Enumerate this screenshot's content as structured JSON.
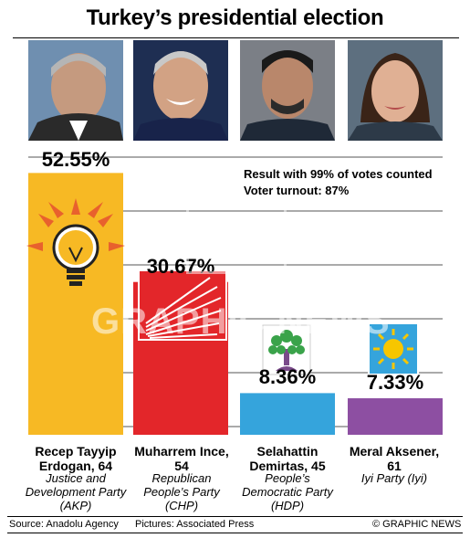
{
  "title": "Turkey’s presidential election",
  "notes": {
    "line1": "Result with 99% of votes counted",
    "line2": "Voter turnout: 87%"
  },
  "chart_data": {
    "type": "bar",
    "categories": [
      "Recep Tayyip Erdogan",
      "Muharrem Ince",
      "Selahattin Demirtas",
      "Meral Aksener"
    ],
    "values": [
      52.55,
      30.67,
      8.36,
      7.33
    ],
    "value_labels": [
      "52.55%",
      "30.67%",
      "8.36%",
      "7.33%"
    ],
    "colors": [
      "#f7b924",
      "#e3262a",
      "#35a4dc",
      "#8d4fa2"
    ],
    "ylim": [
      0,
      55
    ],
    "grid": true,
    "title": "Turkey’s presidential election"
  },
  "candidates": [
    {
      "name": "Recep Tayyip Erdogan, 64",
      "party": "Justice and Development Party (AKP)",
      "logo_icon": "akp-lightbulb-icon"
    },
    {
      "name": "Muharrem Ince, 54",
      "party": "Republican People’s Party (CHP)",
      "logo_icon": "chp-six-arrows-icon"
    },
    {
      "name": "Selahattin Demirtas, 45",
      "party": "People’s Democratic Party (HDP)",
      "logo_icon": "hdp-tree-icon"
    },
    {
      "name": "Meral Aksener, 61",
      "party": "Iyi Party (Iyi)",
      "logo_icon": "iyi-sun-icon"
    }
  ],
  "footer": {
    "source": "Source: Anadolu Agency",
    "pictures": "Pictures: Associated Press",
    "credit": "© GRAPHIC NEWS"
  },
  "watermark": "GRAPHIC NEWS"
}
